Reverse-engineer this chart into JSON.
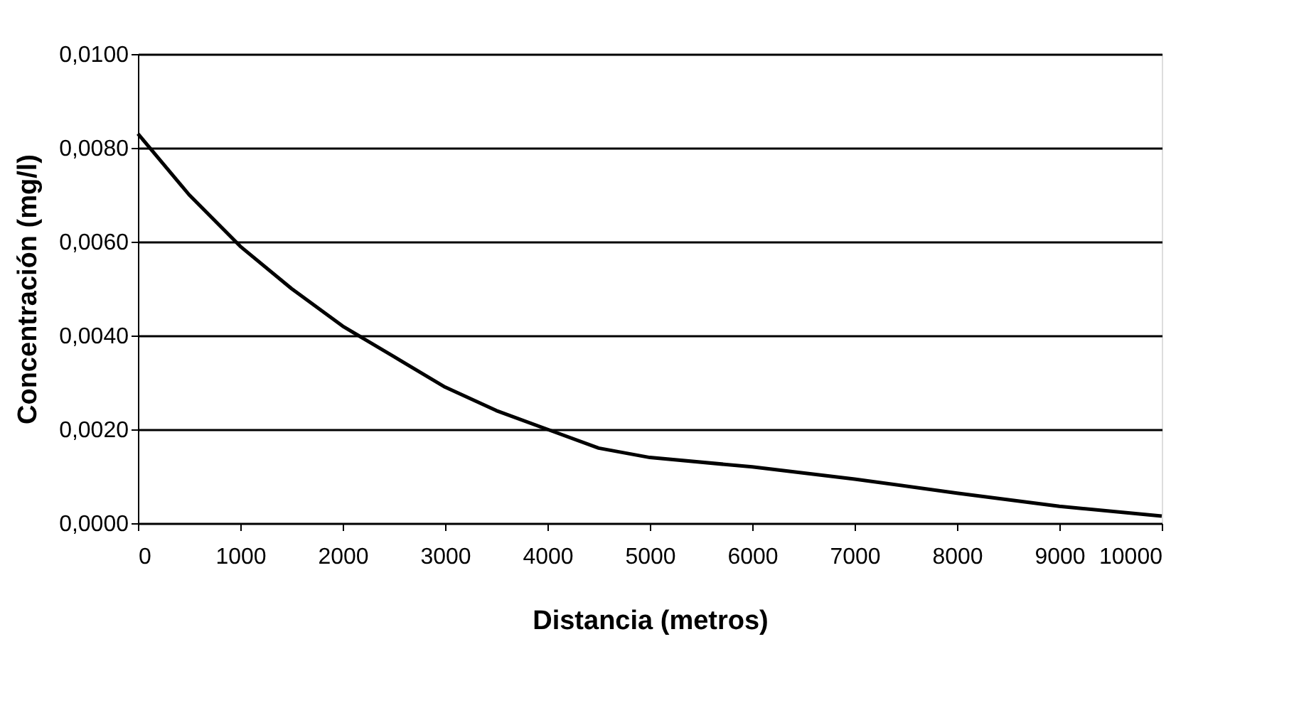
{
  "chart_data": {
    "type": "line",
    "xlabel": "Distancia (metros)",
    "ylabel": "Concentración (mg/l)",
    "x": [
      0,
      500,
      1000,
      1500,
      2000,
      2500,
      3000,
      3500,
      4000,
      4500,
      5000,
      6000,
      7000,
      8000,
      9000,
      10000
    ],
    "series": [
      {
        "color": "#000000",
        "values": [
          0.0083,
          0.007,
          0.0059,
          0.005,
          0.0042,
          0.00355,
          0.0029,
          0.0024,
          0.002,
          0.0016,
          0.0014,
          0.0012,
          0.00094,
          0.00064,
          0.00036,
          0.00015
        ]
      }
    ],
    "xlim": [
      0,
      10000
    ],
    "xticks": [
      0,
      1000,
      2000,
      3000,
      4000,
      5000,
      6000,
      7000,
      8000,
      9000,
      10000
    ],
    "ylim": [
      0,
      0.01
    ],
    "yticks": [
      {
        "value": 0,
        "label": "0,0000"
      },
      {
        "value": 0.002,
        "label": "0,0020"
      },
      {
        "value": 0.004,
        "label": "0,0040"
      },
      {
        "value": 0.006,
        "label": "0,0060"
      },
      {
        "value": 0.008,
        "label": "0,0080"
      },
      {
        "value": 0.01,
        "label": "0,0100"
      }
    ],
    "grid": "y",
    "marker": "none",
    "line_style": "solid",
    "legend": false
  }
}
